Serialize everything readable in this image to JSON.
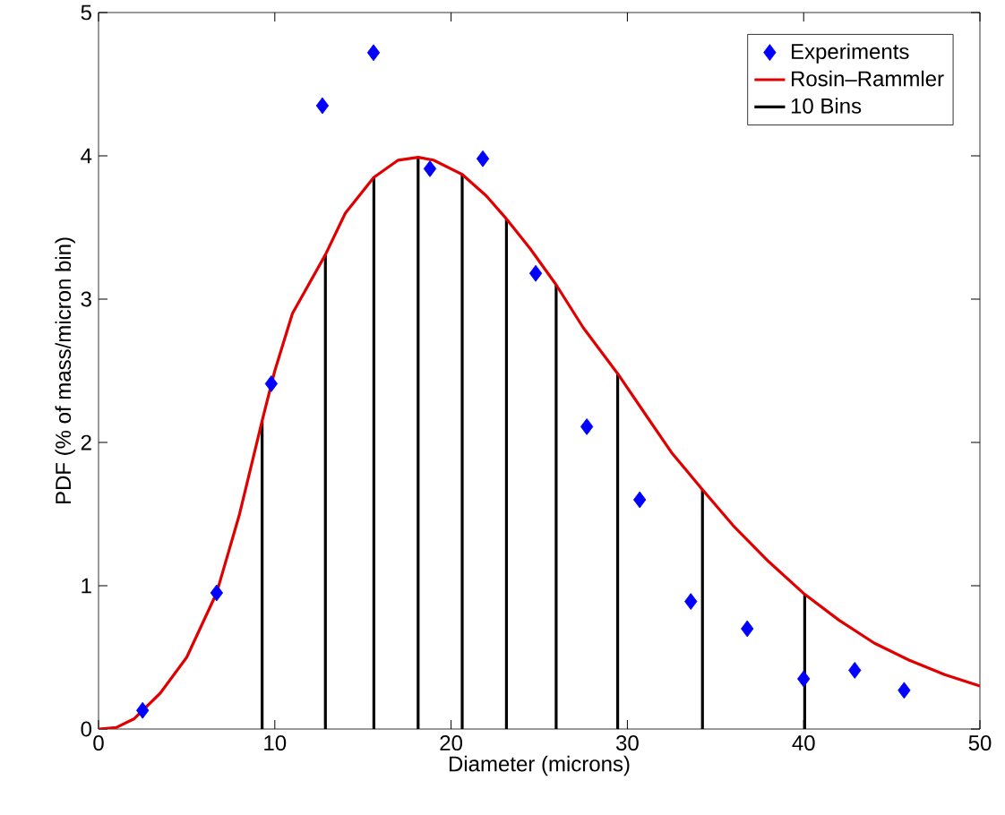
{
  "chart_data": {
    "type": "scatter",
    "xlabel": "Diameter (microns)",
    "ylabel": "PDF (% of mass/micron bin)",
    "xlim": [
      0,
      50
    ],
    "ylim": [
      0,
      5
    ],
    "xticks": [
      0,
      10,
      20,
      30,
      40,
      50
    ],
    "yticks": [
      0,
      1,
      2,
      3,
      4,
      5
    ],
    "grid": false,
    "legend": "top right",
    "series": [
      {
        "name": "Experiments",
        "marker": "diamond",
        "color": "#0000ff",
        "x": [
          2.5,
          6.7,
          9.8,
          12.7,
          15.6,
          18.8,
          21.8,
          24.8,
          27.7,
          30.7,
          33.6,
          36.8,
          40,
          42.9,
          45.7
        ],
        "values": [
          0.13,
          0.95,
          2.41,
          4.35,
          4.72,
          3.91,
          3.98,
          3.18,
          2.11,
          1.6,
          0.89,
          0.7,
          0.35,
          0.41,
          0.27
        ]
      },
      {
        "name": "Rosin–Rammler",
        "type": "line",
        "color": "#e00000",
        "x": [
          0,
          1,
          2,
          3.5,
          5,
          6.7,
          8,
          9.28,
          10,
          11,
          12.87,
          14,
          15.62,
          17,
          18.13,
          19,
          20.63,
          22,
          23.14,
          24.5,
          25.96,
          27.5,
          29.45,
          31,
          32.5,
          34.26,
          36,
          38,
          40.06,
          42,
          44,
          46,
          48,
          50
        ],
        "values": [
          0,
          0.01,
          0.07,
          0.25,
          0.5,
          0.95,
          1.5,
          2.15,
          2.5,
          2.9,
          3.31,
          3.6,
          3.85,
          3.97,
          3.99,
          3.97,
          3.87,
          3.72,
          3.56,
          3.35,
          3.1,
          2.8,
          2.48,
          2.2,
          1.93,
          1.67,
          1.42,
          1.17,
          0.94,
          0.76,
          0.6,
          0.48,
          0.38,
          0.3
        ]
      },
      {
        "name": "10 Bins",
        "type": "bar",
        "color": "#000000",
        "x": [
          9.28,
          12.87,
          15.62,
          18.13,
          20.63,
          23.14,
          25.96,
          29.45,
          34.26,
          40.06
        ],
        "values": [
          2.15,
          3.31,
          3.85,
          3.99,
          3.87,
          3.56,
          3.1,
          2.48,
          1.67,
          0.94
        ]
      }
    ]
  }
}
